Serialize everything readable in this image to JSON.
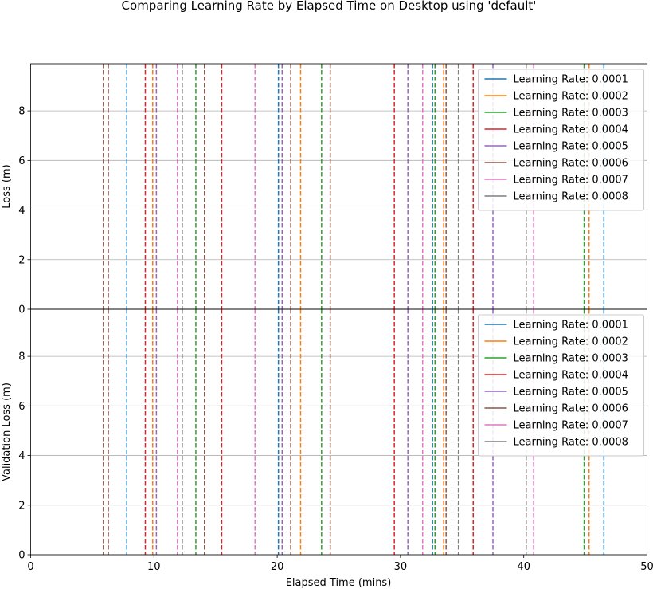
{
  "chart_data": {
    "type": "line",
    "title": "Comparing Learning Rate by Elapsed Time on Desktop using 'default'",
    "xlabel": "Elapsed Time (mins)",
    "xlim": [
      0,
      50
    ],
    "xticks": [
      "0",
      "10",
      "20",
      "30",
      "40",
      "50"
    ],
    "grid": true,
    "legend_position": "upper right",
    "colors": [
      "#1f77b4",
      "#ff7f0e",
      "#2ca02c",
      "#d62728",
      "#9467bd",
      "#8c564b",
      "#e377c2",
      "#7f7f7f"
    ],
    "series": [
      {
        "name": "Learning Rate: 0.0001",
        "x": [
          7.8,
          20.1,
          32.6,
          46.5
        ]
      },
      {
        "name": "Learning Rate: 0.0002",
        "x": [
          9.9,
          21.9,
          33.5,
          45.3
        ]
      },
      {
        "name": "Learning Rate: 0.0003",
        "x": [
          13.4,
          23.6,
          32.8,
          44.9
        ]
      },
      {
        "name": "Learning Rate: 0.0004",
        "x": [
          9.3,
          15.5,
          29.5,
          35.9
        ]
      },
      {
        "name": "Learning Rate: 0.0005",
        "x": [
          10.2,
          20.4,
          30.6,
          37.5
        ]
      },
      {
        "name": "Learning Rate: 0.0006",
        "x": [
          5.9,
          6.3,
          14.1,
          21.1,
          24.3,
          33.7
        ]
      },
      {
        "name": "Learning Rate: 0.0007",
        "x": [
          11.9,
          18.2,
          31.8,
          40.8
        ]
      },
      {
        "name": "Learning Rate: 0.0008",
        "x": [
          12.3,
          34.7,
          40.2
        ]
      }
    ],
    "subplots": [
      {
        "ylabel": "Loss (m)",
        "ylim": [
          0,
          9.9
        ],
        "yticks": [
          "0",
          "2",
          "4",
          "6",
          "8"
        ]
      },
      {
        "ylabel": "Validation Loss (m)",
        "ylim": [
          0,
          9.9
        ],
        "yticks": [
          "0",
          "2",
          "4",
          "6",
          "8"
        ]
      }
    ]
  }
}
